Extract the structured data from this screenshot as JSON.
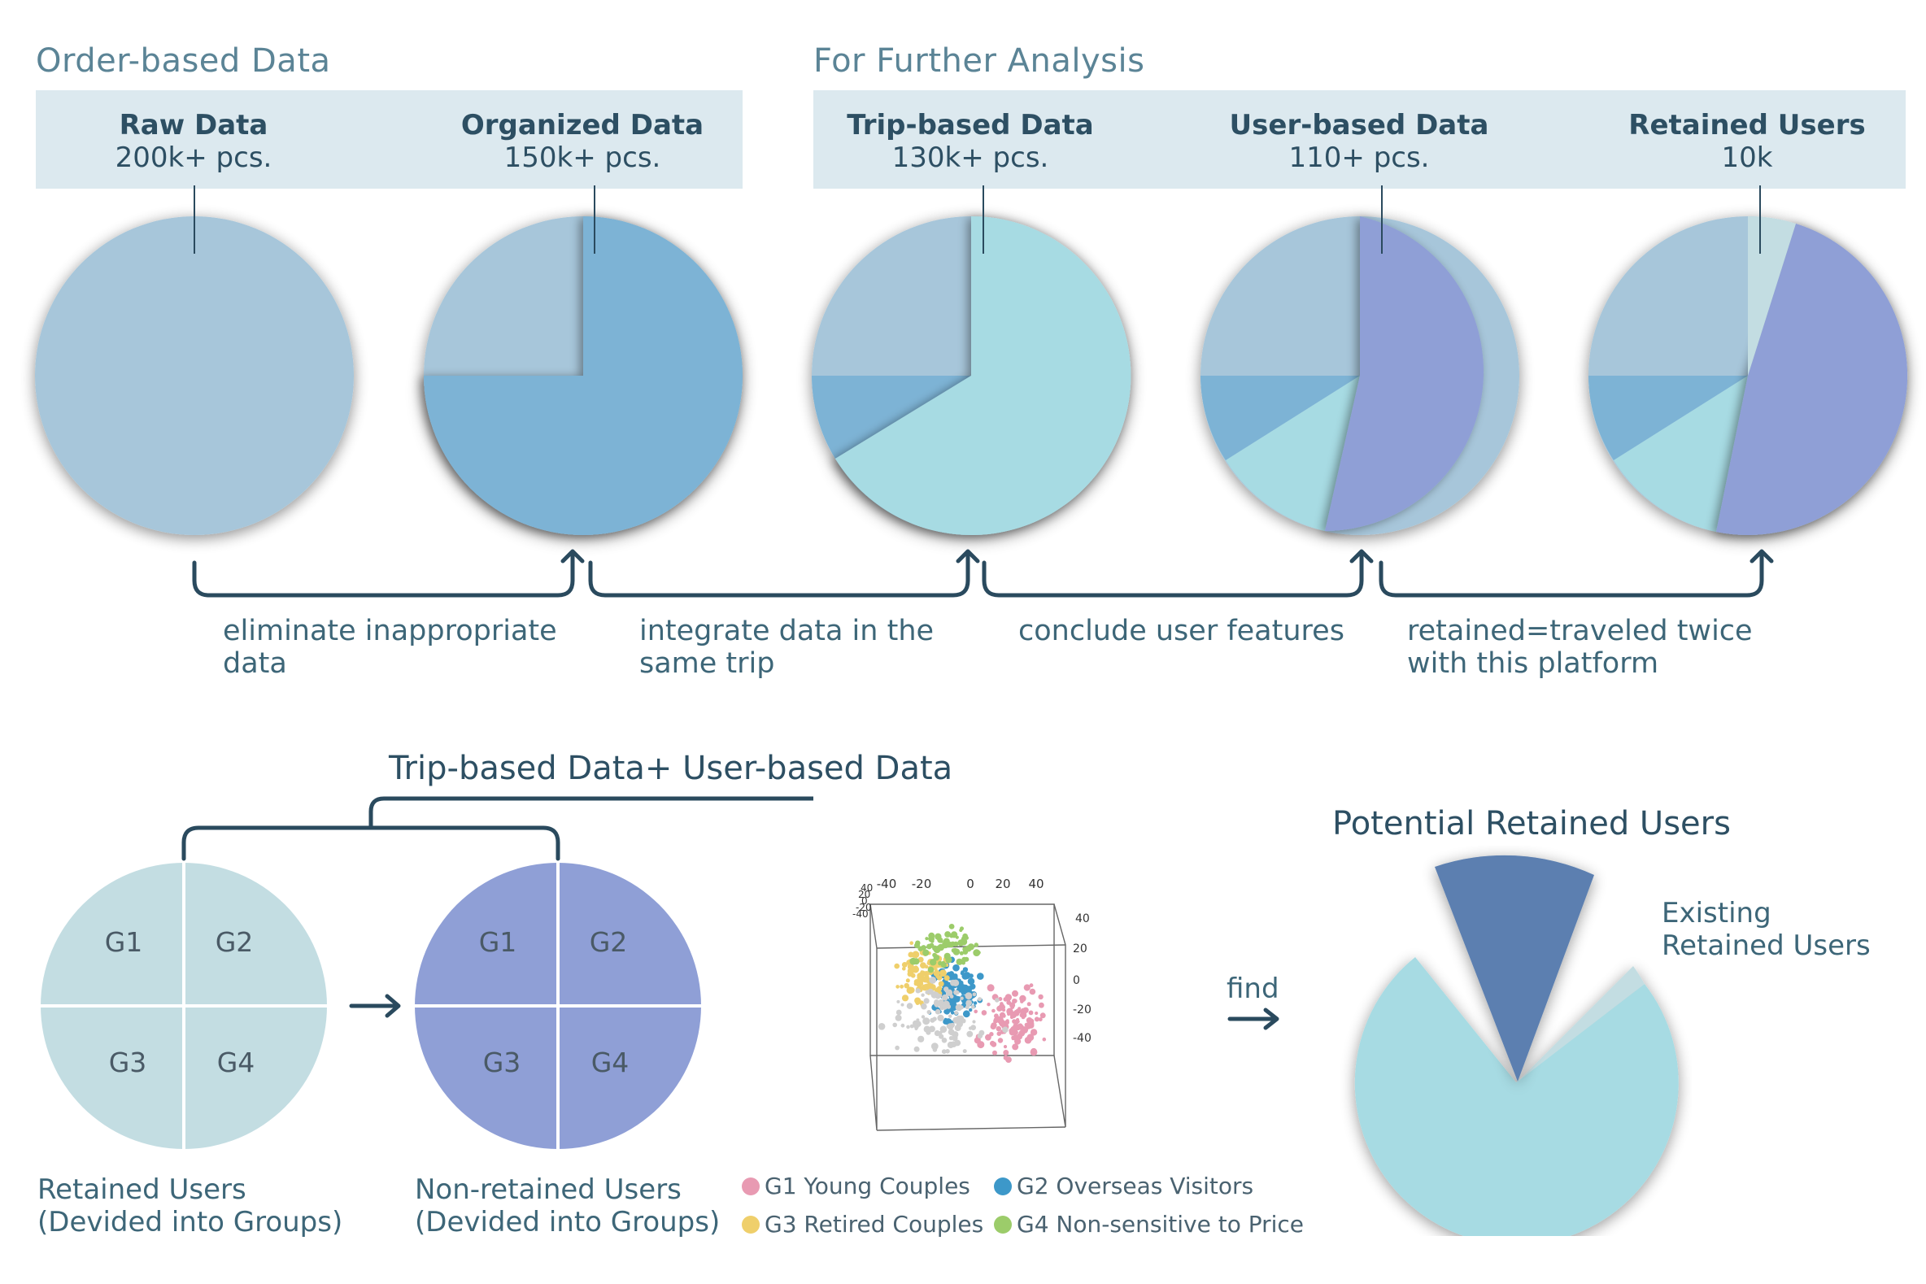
{
  "sections": {
    "order_based": "Order-based Data",
    "further_analysis": "For Further Analysis"
  },
  "headers": [
    {
      "title": "Raw Data",
      "value": "200k+ pcs."
    },
    {
      "title": "Organized Data",
      "value": "150k+ pcs."
    },
    {
      "title": "Trip-based Data",
      "value": "130k+ pcs."
    },
    {
      "title": "User-based Data",
      "value": "110+ pcs."
    },
    {
      "title": "Retained Users",
      "value": "10k"
    }
  ],
  "steps": [
    {
      "line1": "eliminate inappropriate",
      "line2": "data"
    },
    {
      "line1": "integrate data in the",
      "line2": "same trip"
    },
    {
      "line1": "conclude user features",
      "line2": ""
    },
    {
      "line1": "retained=traveled twice",
      "line2": "with this platform"
    }
  ],
  "colors": {
    "pale_blue": "#a7c6da",
    "mid_blue": "#7db3d5",
    "aqua": "#a7dbe3",
    "lavender": "#8f9fd6",
    "pale_gray_blue": "#c3dde2",
    "dark_blue": "#5b7fb0",
    "connector": "#2a4a5e"
  },
  "combo_title": "Trip-based Data+ User-based Data",
  "groups": {
    "g1": "G1",
    "g2": "G2",
    "g3": "G3",
    "g4": "G4"
  },
  "captions": {
    "retained_line1": "Retained Users",
    "retained_line2": "(Devided into Groups)",
    "nonretained_line1": "Non-retained Users",
    "nonretained_line2": "(Devided into Groups)"
  },
  "scatter_axes": {
    "top_ticks": [
      "-40",
      "-20",
      "0",
      "20",
      "40"
    ],
    "side_ticks": [
      "40",
      "20",
      "0",
      "-20",
      "-40"
    ],
    "corner_ticks": [
      "40",
      "20",
      "0",
      "-20",
      "-40"
    ]
  },
  "legend": [
    {
      "label": "G1 Young Couples",
      "color": "#e89ab2"
    },
    {
      "label": "G2 Overseas Visitors",
      "color": "#3d98c9"
    },
    {
      "label": "G3 Retired Couples",
      "color": "#efcf6b"
    },
    {
      "label": "G4 Non-sensitive to Price",
      "color": "#9ccc6a"
    }
  ],
  "find_label": "find",
  "potential": {
    "title": "Potential Retained Users",
    "existing_line1": "Existing",
    "existing_line2": "Retained Users"
  }
}
